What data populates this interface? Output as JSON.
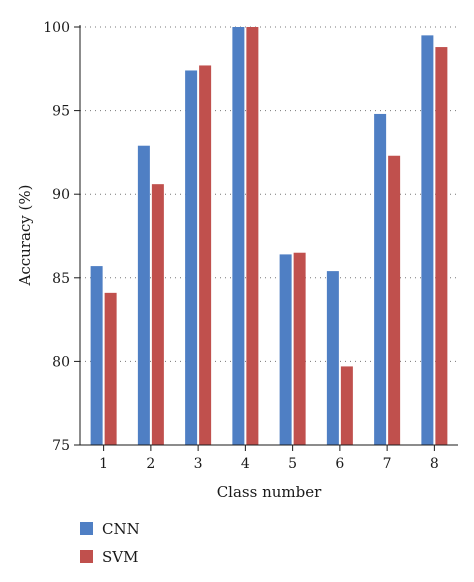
{
  "chart_data": {
    "type": "bar",
    "categories": [
      "1",
      "2",
      "3",
      "4",
      "5",
      "6",
      "7",
      "8"
    ],
    "series": [
      {
        "name": "CNN",
        "color": "#4f7fc4",
        "values": [
          85.7,
          92.9,
          97.4,
          100.0,
          86.4,
          85.4,
          94.8,
          99.5
        ]
      },
      {
        "name": "SVM",
        "color": "#c0504d",
        "values": [
          84.1,
          90.6,
          97.7,
          100.0,
          86.5,
          79.7,
          92.3,
          98.8
        ]
      }
    ],
    "title": "",
    "xlabel": "Class number",
    "ylabel": "Accuracy (%)",
    "ylim": [
      75,
      100
    ],
    "yticks": [
      75,
      80,
      85,
      90,
      95,
      100
    ],
    "grid": "horizontal-dotted",
    "legend_placement": "bottom-left"
  }
}
